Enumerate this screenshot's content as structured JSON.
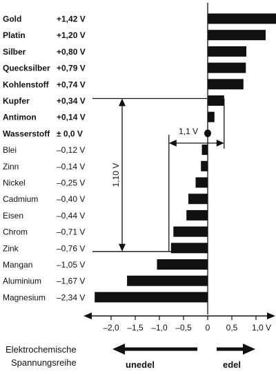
{
  "chart_data": {
    "type": "bar",
    "orientation": "horizontal",
    "title": "",
    "xlabel": "",
    "ylabel": "",
    "xlim": [
      -2.4,
      1.4
    ],
    "categories": [
      "Gold",
      "Platin",
      "Silber",
      "Quecksilber",
      "Kohlenstoff",
      "Kupfer",
      "Antimon",
      "Wasserstoff",
      "Blei",
      "Zinn",
      "Nickel",
      "Cadmium",
      "Eisen",
      "Chrom",
      "Zink",
      "Mangan",
      "Aluminium",
      "Magnesium"
    ],
    "values": [
      1.42,
      1.2,
      0.8,
      0.79,
      0.74,
      0.34,
      0.14,
      0.0,
      -0.12,
      -0.14,
      -0.25,
      -0.4,
      -0.44,
      -0.71,
      -0.76,
      -1.05,
      -1.67,
      -2.34
    ],
    "value_labels": [
      "+1,42 V",
      "+1,20 V",
      "+0,80 V",
      "+0,79 V",
      "+0,74 V",
      "+0,34 V",
      "+0,14 V",
      "± 0,0 V",
      "–0,12 V",
      "–0,14 V",
      "–0,25 V",
      "–0,40 V",
      "–0,44 V",
      "–0,71 V",
      "–0,76 V",
      "–1,05 V",
      "–1,67 V",
      "–2,34 V"
    ],
    "bold_rows": 8,
    "x_ticks": [
      -2.0,
      -1.5,
      -1.0,
      -0.5,
      0,
      0.5,
      1.0
    ],
    "x_tick_labels": [
      "–2,0",
      "–1,5",
      "–1,0",
      "–0,5",
      "0",
      "0,5",
      "1,0 V"
    ],
    "annotations": {
      "vertical_span_label": "1,10 V",
      "vertical_span_from": "Kupfer",
      "vertical_span_to": "Zink",
      "horizontal_span_label": "1,1 V",
      "horizontal_span_from": -0.76,
      "horizontal_span_to": 0.34
    },
    "footer": {
      "title_line1": "Elektrochemische",
      "title_line2": "Spannungsreihe",
      "left_label": "unedel",
      "right_label": "edel"
    }
  }
}
